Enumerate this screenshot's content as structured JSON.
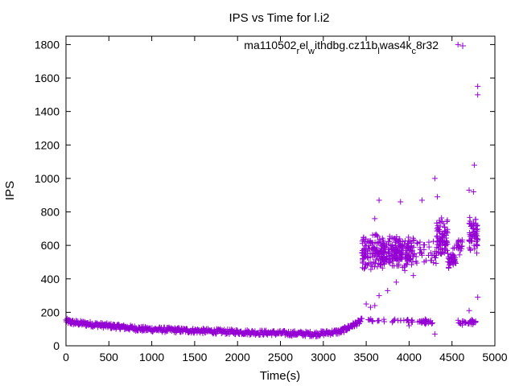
{
  "chart_data": {
    "type": "scatter",
    "title": "IPS vs Time for l.i2",
    "xlabel": "Time(s)",
    "ylabel": "IPS",
    "xlim": [
      0,
      5000
    ],
    "ylim": [
      0,
      1850
    ],
    "xticks": [
      0,
      500,
      1000,
      1500,
      2000,
      2500,
      3000,
      3500,
      4000,
      4500,
      5000
    ],
    "yticks": [
      0,
      200,
      400,
      600,
      800,
      1000,
      1200,
      1400,
      1600,
      1800
    ],
    "grid": false,
    "legend_position": "top-right",
    "marker": "plus",
    "series": [
      {
        "name_parts": [
          {
            "text": "ma110502",
            "sub": false
          },
          {
            "text": "r",
            "sub": true
          },
          {
            "text": "el",
            "sub": false
          },
          {
            "text": "w",
            "sub": true
          },
          {
            "text": "ithdbg.cz11b",
            "sub": false
          },
          {
            "text": "l",
            "sub": true
          },
          {
            "text": "was4k",
            "sub": false
          },
          {
            "text": "c",
            "sub": true
          },
          {
            "text": "8r32",
            "sub": false
          }
        ],
        "color": "#9400d3",
        "segments": [
          {
            "x_start": 0,
            "x_end": 60,
            "y_start": 150,
            "y_end": 140,
            "count": 15
          },
          {
            "x_start": 60,
            "x_end": 900,
            "y_start": 140,
            "y_end": 100,
            "count": 160
          },
          {
            "x_start": 900,
            "x_end": 1800,
            "y_start": 100,
            "y_end": 85,
            "count": 150
          },
          {
            "x_start": 1800,
            "x_end": 2900,
            "y_start": 85,
            "y_end": 70,
            "count": 170
          },
          {
            "x_start": 2900,
            "x_end": 3200,
            "y_start": 70,
            "y_end": 85,
            "count": 50
          },
          {
            "x_start": 3200,
            "x_end": 3450,
            "y_start": 85,
            "y_end": 150,
            "count": 50
          }
        ],
        "clusters": [
          {
            "x_start": 3450,
            "x_end": 4050,
            "y_center": 560,
            "y_spread": 110,
            "count": 320
          },
          {
            "x_start": 4050,
            "x_end": 4330,
            "y_center": 560,
            "y_spread": 90,
            "count": 40
          },
          {
            "x_start": 4320,
            "x_end": 4450,
            "y_center": 640,
            "y_spread": 140,
            "count": 80
          },
          {
            "x_start": 4450,
            "x_end": 4550,
            "y_center": 520,
            "y_spread": 80,
            "count": 40
          },
          {
            "x_start": 4550,
            "x_end": 4620,
            "y_center": 600,
            "y_spread": 60,
            "count": 20
          },
          {
            "x_start": 4700,
            "x_end": 4800,
            "y_center": 660,
            "y_spread": 130,
            "count": 60
          },
          {
            "x_start": 3500,
            "x_end": 4050,
            "y_center": 150,
            "y_spread": 12,
            "count": 30
          },
          {
            "x_start": 4100,
            "x_end": 4280,
            "y_center": 140,
            "y_spread": 20,
            "count": 25
          },
          {
            "x_start": 4550,
            "x_end": 4780,
            "y_center": 140,
            "y_spread": 20,
            "count": 30
          }
        ],
        "extra_points": [
          [
            4570,
            1800
          ],
          [
            4800,
            1550
          ],
          [
            4800,
            1500
          ],
          [
            4760,
            1080
          ],
          [
            4300,
            1000
          ],
          [
            4330,
            890
          ],
          [
            4700,
            930
          ],
          [
            4750,
            920
          ],
          [
            3900,
            860
          ],
          [
            4150,
            870
          ],
          [
            3600,
            760
          ],
          [
            3650,
            870
          ],
          [
            3500,
            250
          ],
          [
            3550,
            230
          ],
          [
            3600,
            240
          ],
          [
            3650,
            300
          ],
          [
            3750,
            330
          ],
          [
            3850,
            380
          ],
          [
            3950,
            450
          ],
          [
            4050,
            420
          ],
          [
            4700,
            210
          ],
          [
            4800,
            290
          ],
          [
            4300,
            70
          ],
          [
            4000,
            120
          ]
        ]
      }
    ]
  }
}
